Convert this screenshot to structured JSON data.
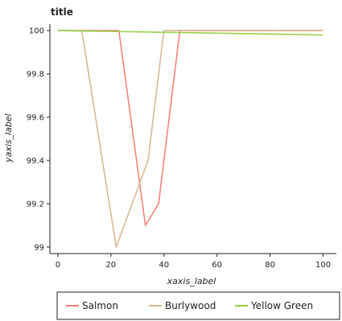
{
  "chart_data": {
    "type": "line",
    "title": "title",
    "xlabel": "xaxis_label",
    "ylabel": "yaxis_label",
    "xlim": [
      -3,
      105
    ],
    "ylim": [
      98.97,
      100.03
    ],
    "x_ticks": [
      0,
      20,
      40,
      60,
      80,
      100
    ],
    "y_ticks": [
      99,
      99.2,
      99.4,
      99.6,
      99.8,
      100
    ],
    "x_tick_labels": [
      "0",
      "20",
      "40",
      "60",
      "80",
      "100"
    ],
    "y_tick_labels": [
      "99",
      "99.2",
      "99.4",
      "99.6",
      "99.8",
      "100"
    ],
    "grid": false,
    "legend_position": "bottom",
    "series": [
      {
        "name": "Salmon",
        "color": "#f4847a",
        "x": [
          0,
          20,
          23,
          33,
          38,
          46,
          100
        ],
        "y": [
          100,
          100,
          100,
          99.1,
          99.2,
          100,
          100
        ]
      },
      {
        "name": "Burlywood",
        "color": "#d7b994",
        "x": [
          0,
          9,
          22,
          34,
          40,
          46,
          100
        ],
        "y": [
          100,
          100,
          99,
          99.4,
          100,
          100,
          100
        ]
      },
      {
        "name": "Yellow Green",
        "color": "#99d04a",
        "x": [
          0,
          100
        ],
        "y": [
          100,
          99.98
        ]
      }
    ]
  }
}
